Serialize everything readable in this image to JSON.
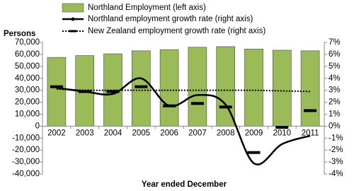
{
  "chart_data": {
    "type": "bar-line",
    "y_label": "Persons",
    "x_label": "Year ended December",
    "categories": [
      "2002",
      "2003",
      "2004",
      "2005",
      "2006",
      "2007",
      "2008",
      "2009",
      "2010",
      "2011"
    ],
    "ylim": [
      -40000,
      70000
    ],
    "yticks": [
      {
        "value": -40000,
        "label": "-40,000"
      },
      {
        "value": -30000,
        "label": "-30,000"
      },
      {
        "value": -20000,
        "label": "-20,000"
      },
      {
        "value": -10000,
        "label": "-10,000"
      },
      0,
      {
        "value": 10000,
        "label": "10,000"
      },
      {
        "value": 20000,
        "label": "20,000"
      },
      {
        "value": 30000,
        "label": "30,000"
      },
      {
        "value": 40000,
        "label": "40,000"
      },
      {
        "value": 50000,
        "label": "50,000"
      },
      {
        "value": 60000,
        "label": "60,000"
      },
      {
        "value": 70000,
        "label": "70,000"
      }
    ],
    "y2lim": [
      -4,
      7
    ],
    "y2ticks": [
      {
        "value": -4,
        "label": "-4%"
      },
      {
        "value": -3,
        "label": "-3%"
      },
      {
        "value": -2,
        "label": "-2%"
      },
      {
        "value": -1,
        "label": "-1%"
      },
      {
        "value": 0,
        "label": "0%"
      },
      {
        "value": 1,
        "label": "1%"
      },
      {
        "value": 2,
        "label": "2%"
      },
      {
        "value": 3,
        "label": "3%"
      },
      {
        "value": 4,
        "label": "4%"
      },
      {
        "value": 5,
        "label": "5%"
      },
      {
        "value": 6,
        "label": "6%"
      },
      {
        "value": 7,
        "label": "7%"
      }
    ],
    "series": [
      {
        "name": "Northland Employment (left axis)",
        "color": "#9bbb59",
        "type": "bar",
        "values": [
          57500,
          59000,
          60500,
          63000,
          64000,
          66000,
          66500,
          64500,
          63500,
          63000
        ]
      },
      {
        "name": "Northland employment growth rate (right axis)",
        "color": "#000000",
        "type": "line",
        "axis": "y2",
        "values": [
          3.2,
          2.9,
          2.7,
          4.0,
          1.7,
          2.6,
          1.8,
          -3.1,
          -1.5,
          -0.8
        ]
      },
      {
        "name": "New Zealand employment growth rate (right axis)",
        "color": "#000000",
        "type": "dotted",
        "axis": "y2",
        "values": [
          3.1,
          3.0,
          3.0,
          3.0,
          3.0,
          3.0,
          3.0,
          3.0,
          2.95,
          2.9
        ],
        "markers": [
          3.3,
          2.9,
          2.9,
          3.3,
          1.7,
          1.9,
          1.6,
          -2.2,
          -0.1,
          1.3
        ]
      }
    ]
  }
}
